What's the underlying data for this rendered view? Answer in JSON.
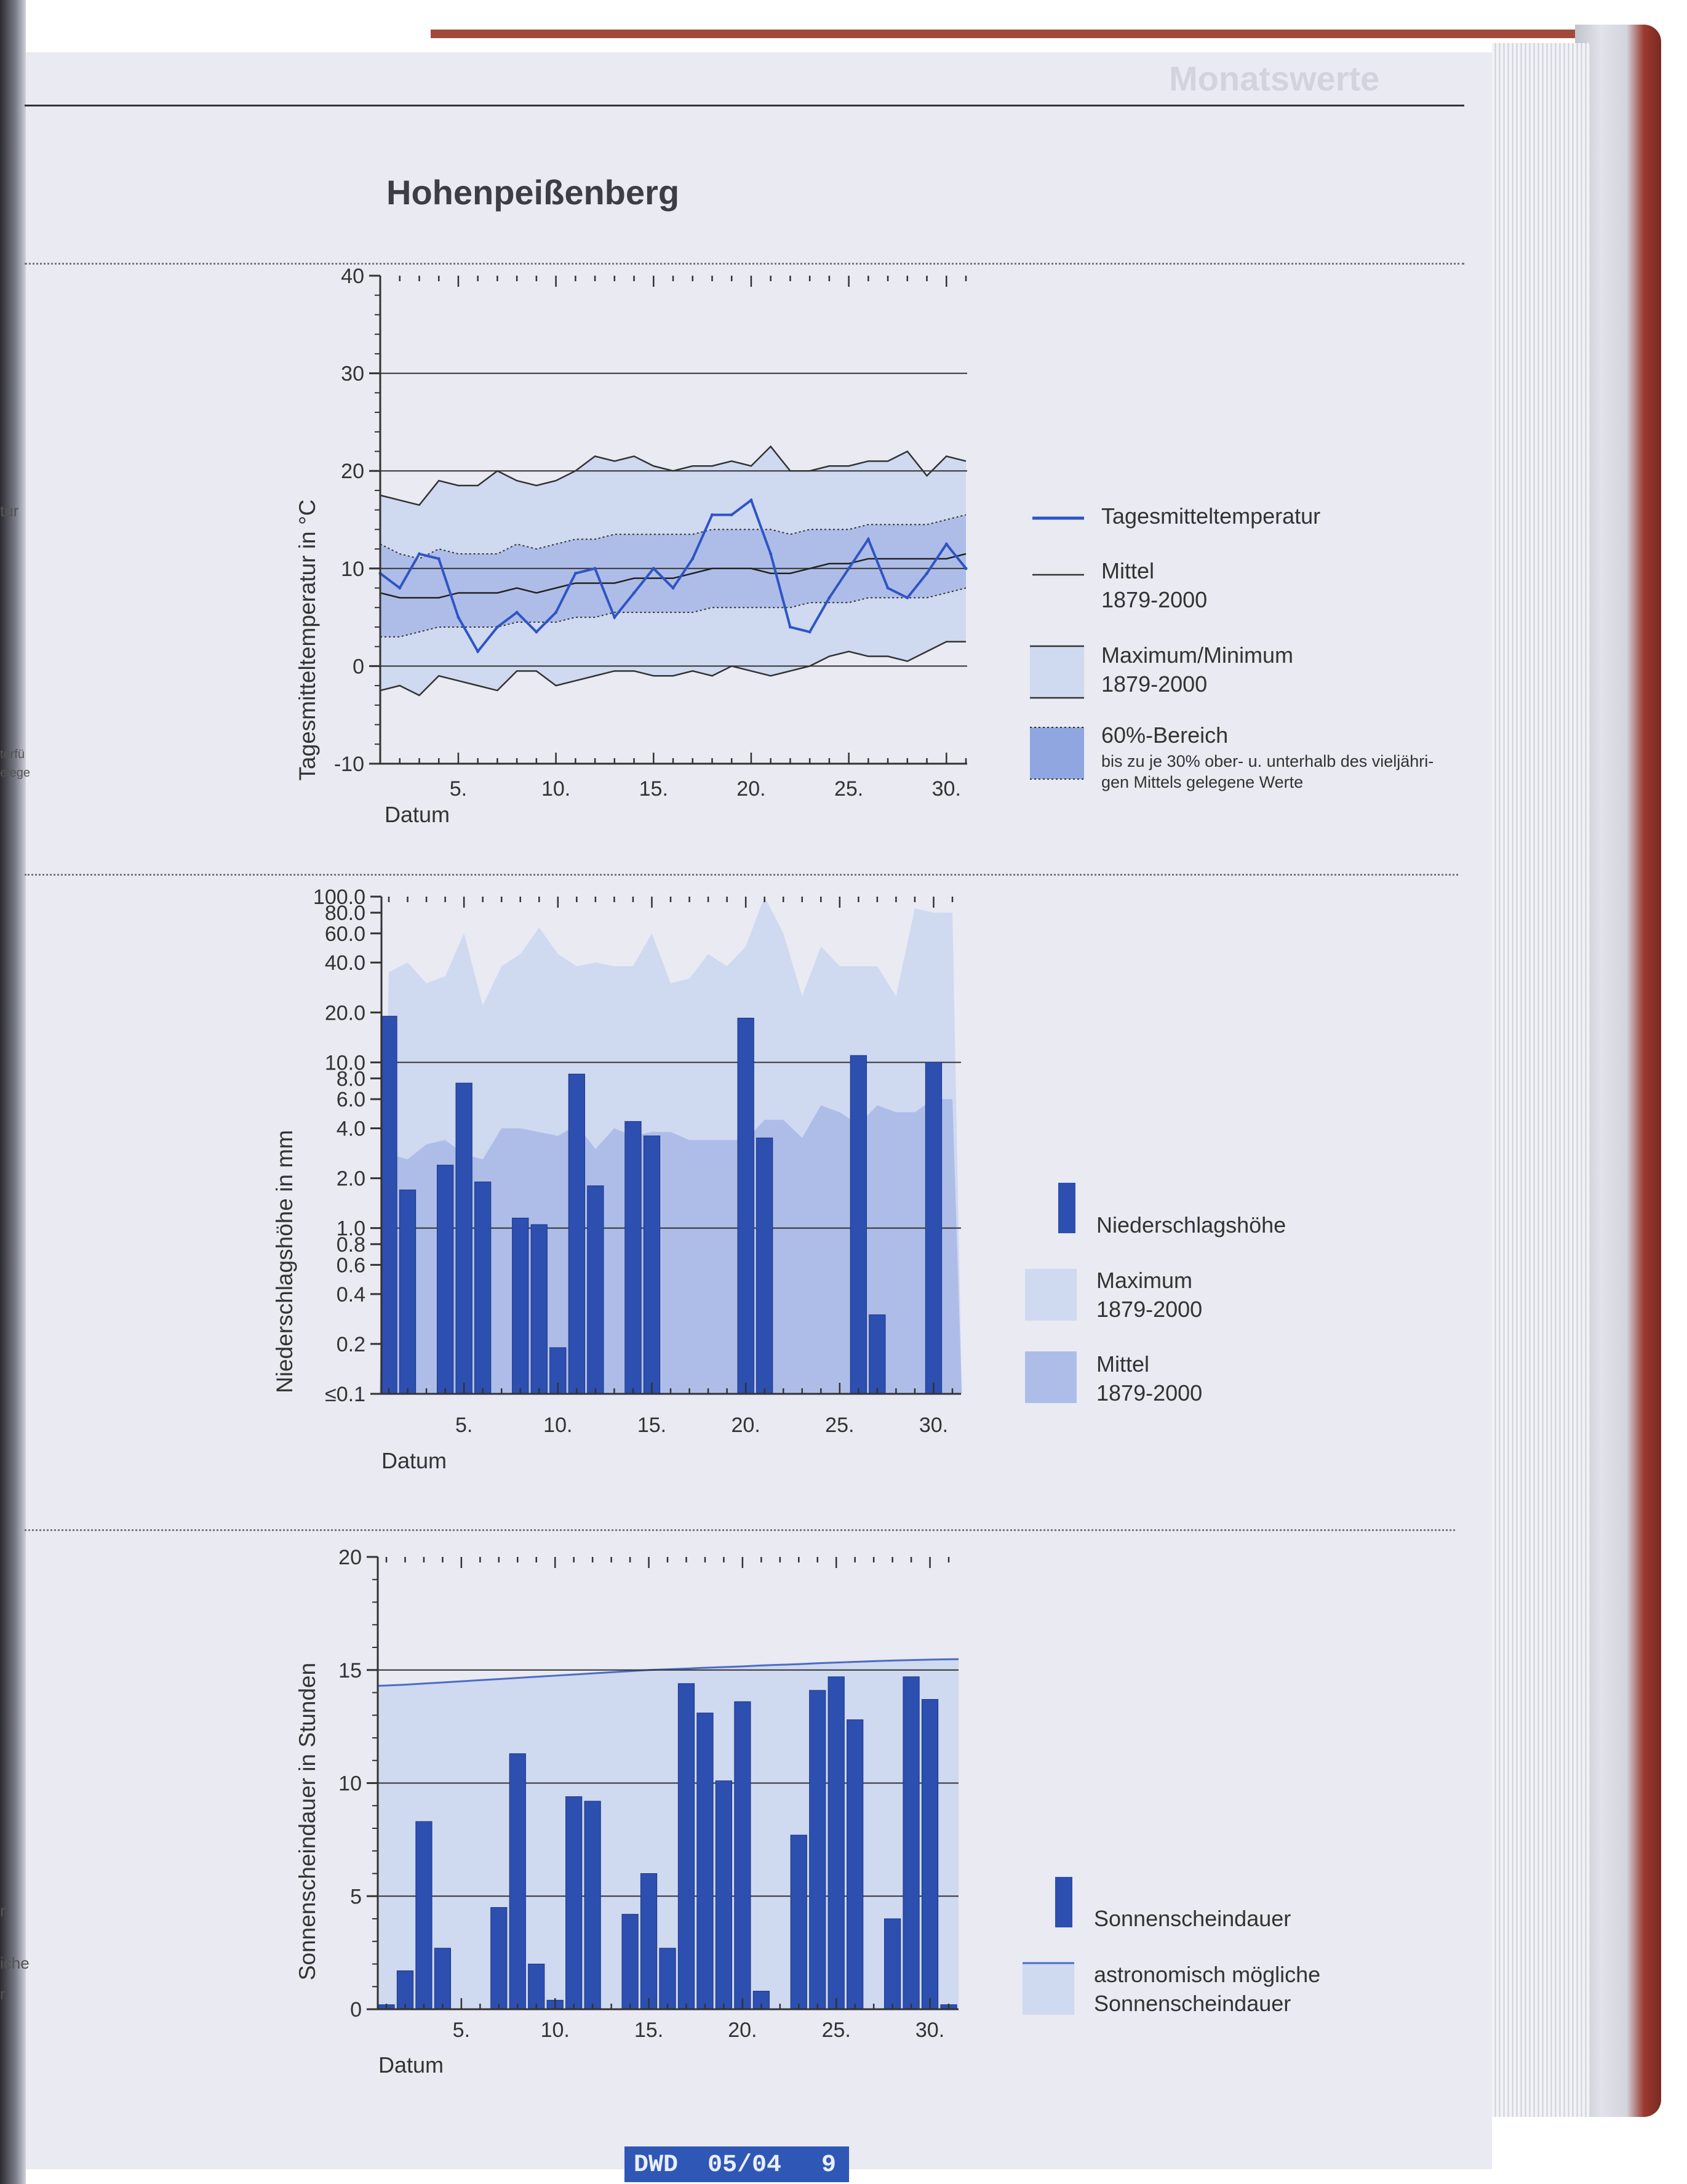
{
  "page": {
    "title": "Hohenpeißenberg",
    "header_faint": "Monatswerte",
    "footer": {
      "publisher": "DWD",
      "issue": "05/04",
      "page_number": "9"
    },
    "left_margin_fragments": [
      "tur",
      "terfü",
      "elege",
      "r",
      "iche",
      "r"
    ]
  },
  "colors": {
    "bar_blue": "#2c4fb0",
    "line_blue": "#2f55c4",
    "band_light": "#cfd9f0",
    "band_mid": "#aebde8",
    "band_60": "#8fa6e0",
    "background": "#e9eaf2"
  },
  "chart_data": [
    {
      "id": "temperature",
      "type": "line",
      "ylabel": "Tagesmitteltemperatur in °C",
      "xlabel": "Datum",
      "ylim": [
        -10,
        40
      ],
      "yticks": [
        "40",
        "30",
        "20",
        "10",
        "0",
        "-10"
      ],
      "xticks": [
        "5.",
        "10.",
        "15.",
        "20.",
        "25.",
        "30."
      ],
      "x": [
        1,
        2,
        3,
        4,
        5,
        6,
        7,
        8,
        9,
        10,
        11,
        12,
        13,
        14,
        15,
        16,
        17,
        18,
        19,
        20,
        21,
        22,
        23,
        24,
        25,
        26,
        27,
        28,
        29,
        30,
        31
      ],
      "series": [
        {
          "name": "Tagesmitteltemperatur",
          "role": "daily",
          "values": [
            9.5,
            8,
            11.5,
            11,
            5,
            1.5,
            4,
            5.5,
            3.5,
            5.5,
            9.5,
            10,
            5,
            7.5,
            10,
            8,
            11,
            15.5,
            15.5,
            17,
            11.5,
            4,
            3.5,
            7,
            10,
            13,
            8,
            7,
            9.5,
            12.5,
            10
          ]
        },
        {
          "name": "Mittel 1879-2000",
          "role": "mean",
          "values": [
            7.5,
            7,
            7,
            7,
            7.5,
            7.5,
            7.5,
            8,
            7.5,
            8,
            8.5,
            8.5,
            8.5,
            9,
            9,
            9,
            9.5,
            10,
            10,
            10,
            9.5,
            9.5,
            10,
            10.5,
            10.5,
            11,
            11,
            11,
            11,
            11,
            11.5
          ]
        },
        {
          "name": "Maximum 1879-2000",
          "role": "max",
          "values": [
            17.5,
            17,
            16.5,
            19,
            18.5,
            18.5,
            20,
            19,
            18.5,
            19,
            20,
            21.5,
            21,
            21.5,
            20.5,
            20,
            20.5,
            20.5,
            21,
            20.5,
            22.5,
            20,
            20,
            20.5,
            20.5,
            21,
            21,
            22,
            19.5,
            21.5,
            21
          ]
        },
        {
          "name": "Minimum 1879-2000",
          "role": "min",
          "values": [
            -2.5,
            -2,
            -3,
            -1,
            -1.5,
            -2,
            -2.5,
            -0.5,
            -0.5,
            -2,
            -1.5,
            -1,
            -0.5,
            -0.5,
            -1,
            -1,
            -0.5,
            -1,
            0,
            -0.5,
            -1,
            -0.5,
            0,
            1,
            1.5,
            1,
            1,
            0.5,
            1.5,
            2.5,
            2.5
          ]
        },
        {
          "name": "60%-Bereich oben",
          "role": "p60_upper",
          "values": [
            12.5,
            11.5,
            11,
            12,
            11.5,
            11.5,
            11.5,
            12.5,
            12,
            12.5,
            13,
            13,
            13.5,
            13.5,
            13.5,
            13.5,
            13.5,
            14,
            14,
            14,
            14,
            13.5,
            14,
            14,
            14,
            14.5,
            14.5,
            14.5,
            14.5,
            15,
            15.5
          ]
        },
        {
          "name": "60%-Bereich unten",
          "role": "p60_lower",
          "values": [
            3,
            3,
            3.5,
            4,
            4,
            4,
            4,
            4.5,
            4.5,
            4.5,
            5,
            5,
            5.5,
            5.5,
            5.5,
            5.5,
            5.5,
            6,
            6,
            6,
            6,
            6,
            6.5,
            6.5,
            6.5,
            7,
            7,
            7,
            7,
            7.5,
            8
          ]
        }
      ],
      "legend": [
        {
          "label": "Tagesmitteltemperatur",
          "sub": ""
        },
        {
          "label": "Mittel",
          "sub": "1879-2000"
        },
        {
          "label": "Maximum/Minimum",
          "sub": "1879-2000"
        },
        {
          "label": "60%-Bereich",
          "sub": "bis zu je 30% ober- u. unterhalb des vieljähri-",
          "sub2": "gen Mittels gelegene Werte"
        }
      ],
      "legend_placement": "right",
      "grid": true
    },
    {
      "id": "precipitation",
      "type": "bar",
      "yscale": "log",
      "ylabel": "Niederschlagshöhe in mm",
      "xlabel": "Datum",
      "ylim": [
        0.1,
        100
      ],
      "yticks": [
        "100.0",
        "80.0",
        "60.0",
        "40.0",
        "20.0",
        "10.0",
        "8.0",
        "6.0",
        "4.0",
        "2.0",
        "1.0",
        "0.8",
        "0.6",
        "0.4",
        "0.2",
        "≤0.1"
      ],
      "ytick_values": [
        100,
        80,
        60,
        40,
        20,
        10,
        8,
        6,
        4,
        2,
        1,
        0.8,
        0.6,
        0.4,
        0.2,
        0.1
      ],
      "xticks": [
        "5.",
        "10.",
        "15.",
        "20.",
        "25.",
        "30."
      ],
      "x": [
        1,
        2,
        3,
        4,
        5,
        6,
        7,
        8,
        9,
        10,
        11,
        12,
        13,
        14,
        15,
        16,
        17,
        18,
        19,
        20,
        21,
        22,
        23,
        24,
        25,
        26,
        27,
        28,
        29,
        30,
        31
      ],
      "series": [
        {
          "name": "Niederschlagshöhe",
          "role": "daily",
          "values": [
            19,
            1.7,
            null,
            2.4,
            7.5,
            1.9,
            null,
            1.15,
            1.05,
            0.19,
            8.5,
            1.8,
            null,
            4.4,
            3.6,
            null,
            null,
            null,
            null,
            18.5,
            3.5,
            null,
            null,
            null,
            null,
            11,
            0.3,
            null,
            null,
            10,
            null
          ]
        },
        {
          "name": "Maximum 1879-2000",
          "role": "max",
          "values": [
            35,
            40,
            30,
            33,
            60,
            22,
            38,
            45,
            65,
            45,
            38,
            40,
            38,
            38,
            60,
            30,
            32,
            45,
            38,
            50,
            110,
            60,
            25,
            50,
            38,
            38,
            38,
            25,
            85,
            80,
            80
          ]
        },
        {
          "name": "Mittel 1879-2000",
          "role": "mean",
          "values": [
            2.8,
            2.6,
            3.2,
            3.4,
            2.8,
            2.6,
            4,
            4,
            3.8,
            3.6,
            4.2,
            3,
            4,
            3.6,
            3.8,
            3.8,
            3.4,
            3.4,
            3.4,
            3.4,
            4.5,
            4.5,
            3.5,
            5.5,
            5,
            4.2,
            5.5,
            5,
            5,
            6,
            6
          ]
        }
      ],
      "legend": [
        {
          "label": "Niederschlagshöhe",
          "sub": ""
        },
        {
          "label": "Maximum",
          "sub": "1879-2000"
        },
        {
          "label": "Mittel",
          "sub": "1879-2000"
        }
      ],
      "legend_placement": "right",
      "grid": true
    },
    {
      "id": "sunshine",
      "type": "bar",
      "ylabel": "Sonnenscheindauer in Stunden",
      "xlabel": "Datum",
      "ylim": [
        0,
        20
      ],
      "yticks": [
        "20",
        "15",
        "10",
        "5",
        "0"
      ],
      "xticks": [
        "5.",
        "10.",
        "15.",
        "20.",
        "25.",
        "30."
      ],
      "x": [
        1,
        2,
        3,
        4,
        5,
        6,
        7,
        8,
        9,
        10,
        11,
        12,
        13,
        14,
        15,
        16,
        17,
        18,
        19,
        20,
        21,
        22,
        23,
        24,
        25,
        26,
        27,
        28,
        29,
        30,
        31
      ],
      "series": [
        {
          "name": "Sonnenscheindauer",
          "role": "daily",
          "values": [
            0.2,
            1.7,
            8.3,
            2.7,
            0,
            0,
            4.5,
            11.3,
            2,
            0.4,
            9.4,
            9.2,
            0,
            4.2,
            6,
            2.7,
            14.4,
            13.1,
            10.1,
            13.6,
            0.8,
            0,
            7.7,
            14.1,
            14.7,
            12.8,
            0,
            4,
            14.7,
            13.7,
            0.2
          ]
        },
        {
          "name": "astronomisch mögliche Sonnenscheindauer",
          "role": "astro",
          "values": [
            14.3,
            14.35,
            14.4,
            14.45,
            14.5,
            14.55,
            14.6,
            14.65,
            14.7,
            14.75,
            14.8,
            14.85,
            14.9,
            14.95,
            15,
            15.03,
            15.06,
            15.1,
            15.13,
            15.16,
            15.2,
            15.23,
            15.26,
            15.3,
            15.33,
            15.36,
            15.39,
            15.42,
            15.44,
            15.46,
            15.48
          ]
        }
      ],
      "legend": [
        {
          "label": "Sonnenscheindauer",
          "sub": ""
        },
        {
          "label": "astronomisch mögliche",
          "sub": "Sonnenscheindauer"
        }
      ],
      "legend_placement": "right",
      "grid": true
    }
  ]
}
